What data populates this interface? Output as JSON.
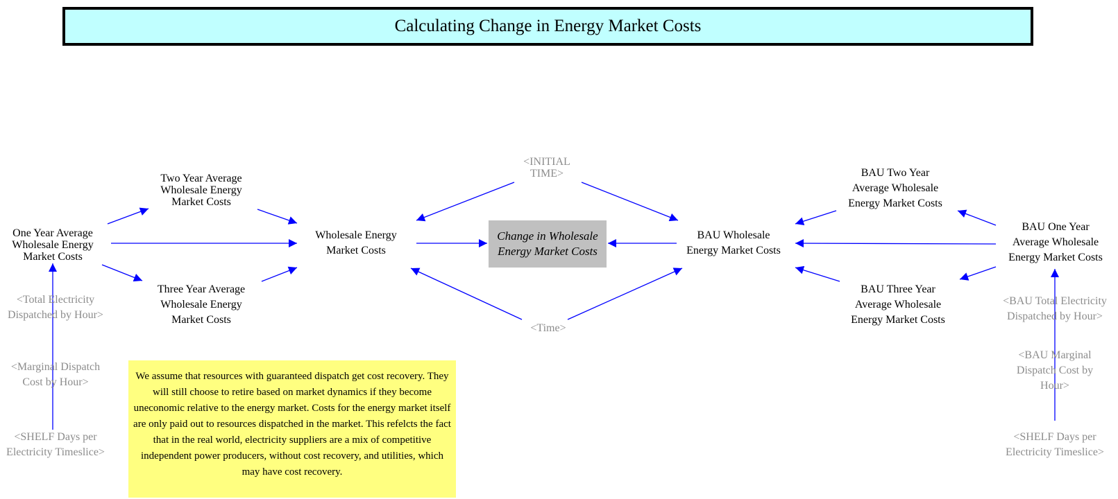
{
  "title": "Calculating Change in Energy Market Costs",
  "nodes": {
    "one_year_avg": "One Year Average\nWholesale Energy\nMarket Costs",
    "two_year_avg": "Two Year Average\nWholesale Energy\nMarket Costs",
    "three_year_avg": "Three Year Average\nWholesale Energy\nMarket Costs",
    "wholesale_costs": "Wholesale Energy\nMarket Costs",
    "change_in_costs": "Change in Wholesale\nEnergy Market Costs",
    "bau_wholesale_costs": "BAU Wholesale\nEnergy Market Costs",
    "bau_two_year_avg": "BAU Two Year\nAverage Wholesale\nEnergy Market Costs",
    "bau_three_year_avg": "BAU Three Year\nAverage Wholesale\nEnergy Market Costs",
    "bau_one_year_avg": "BAU One Year\nAverage Wholesale\nEnergy Market Costs"
  },
  "shadow_vars": {
    "initial_time": "<INITIAL\nTIME>",
    "time": "<Time>",
    "total_electricity": "<Total Electricity\nDispatched by Hour>",
    "marginal_dispatch": "<Marginal Dispatch\nCost by Hour>",
    "shelf_days": "<SHELF Days per\nElectricity Timeslice>",
    "bau_total_electricity": "<BAU Total Electricity\nDispatched by Hour>",
    "bau_marginal_dispatch": "<BAU Marginal\nDispatch Cost by\nHour>",
    "bau_shelf_days": "<SHELF Days per\nElectricity Timeslice>"
  },
  "note": "We assume that resources with guaranteed dispatch get cost recovery. They will still choose to retire based on market dynamics if they become uneconomic relative to the energy market. Costs for the energy market itself are only paid out to resources dispatched in the market. This refelcts the fact that in the real world, electricity suppliers are a mix of competitive independent power producers, without cost recovery, and utilities, which may have cost recovery.",
  "colors": {
    "title_bg": "#c0ffff",
    "arrow": "#0000ff",
    "shadow_text": "#8c8c8c",
    "highlight_box": "#c0c0c0",
    "note_bg": "#ffff80"
  }
}
